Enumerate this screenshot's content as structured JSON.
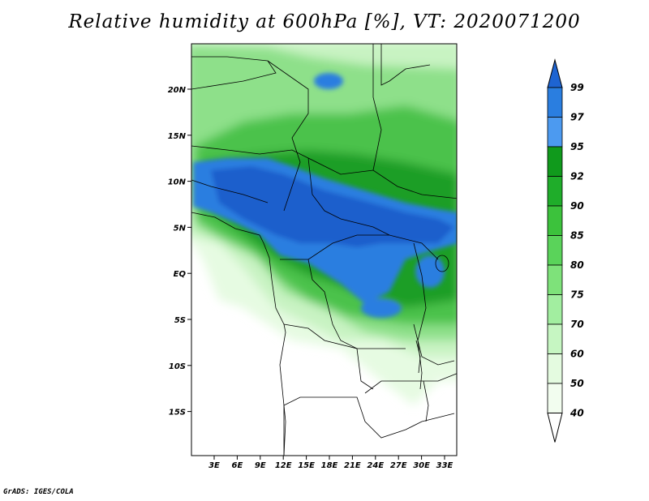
{
  "title": "Relative humidity at 600hPa [%], VT: 2020071200",
  "credit": "GrADS: IGES/COLA",
  "lat_labels": [
    "20N",
    "15N",
    "10N",
    "5N",
    "EQ",
    "5S",
    "10S",
    "15S"
  ],
  "lon_labels": [
    "3E",
    "6E",
    "9E",
    "12E",
    "15E",
    "18E",
    "21E",
    "24E",
    "27E",
    "30E",
    "33E"
  ],
  "legend": {
    "labels": [
      "99",
      "97",
      "95",
      "92",
      "90",
      "85",
      "80",
      "75",
      "70",
      "60",
      "50",
      "40"
    ],
    "colors": [
      "#1e64d2",
      "#2a7ee0",
      "#4c9af0",
      "#109a1c",
      "#1fad2a",
      "#3cc23c",
      "#5ad35a",
      "#7ee27a",
      "#a2eea0",
      "#c6f6c2",
      "#e4fbe0",
      "#f2fdef",
      "#ffffff"
    ]
  }
}
